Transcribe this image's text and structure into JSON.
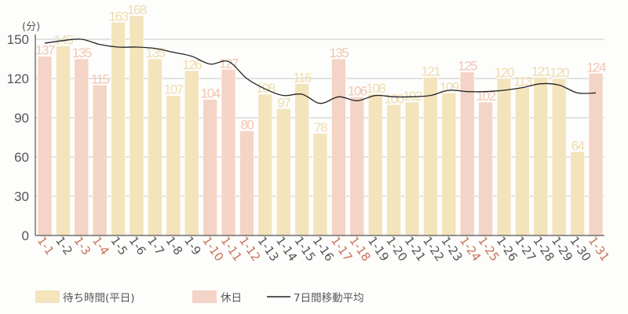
{
  "chart_data": {
    "type": "bar",
    "title": "",
    "xlabel": "",
    "ylabel": "(分)",
    "ylim": [
      0,
      170
    ],
    "yticks": [
      0,
      30,
      60,
      90,
      120,
      150
    ],
    "grid": true,
    "legend_position": "bottom",
    "categories": [
      "1-1",
      "1-2",
      "1-3",
      "1-4",
      "1-5",
      "1-6",
      "1-7",
      "1-8",
      "1-9",
      "1-10",
      "1-11",
      "1-12",
      "1-13",
      "1-14",
      "1-15",
      "1-16",
      "1-17",
      "1-18",
      "1-19",
      "1-20",
      "1-21",
      "1-22",
      "1-23",
      "1-24",
      "1-25",
      "1-26",
      "1-27",
      "1-28",
      "1-29",
      "1-30",
      "1-31"
    ],
    "values": [
      137,
      145,
      135,
      115,
      163,
      168,
      135,
      107,
      126,
      104,
      127,
      80,
      108,
      97,
      116,
      78,
      135,
      106,
      108,
      100,
      102,
      121,
      109,
      125,
      102,
      120,
      113,
      121,
      120,
      64,
      124
    ],
    "holiday": [
      true,
      false,
      true,
      true,
      false,
      false,
      false,
      false,
      false,
      true,
      true,
      true,
      false,
      false,
      false,
      false,
      true,
      true,
      false,
      false,
      false,
      false,
      false,
      true,
      true,
      false,
      false,
      false,
      false,
      false,
      true
    ],
    "series": [
      {
        "name": "待ち時間(平日)",
        "type": "bar",
        "note": "weekday bars"
      },
      {
        "name": "休日",
        "type": "bar",
        "note": "holiday bars"
      },
      {
        "name": "7日間移動平均",
        "type": "line",
        "values": [
          147,
          149,
          150,
          146,
          144,
          144,
          143,
          140,
          137,
          131,
          133,
          120,
          112,
          107,
          108,
          101,
          106,
          103,
          107,
          106,
          106,
          107,
          111,
          110,
          110,
          111,
          113,
          116,
          115,
          109,
          109
        ]
      }
    ]
  },
  "axis": {
    "unit_label": "(分)"
  },
  "legend": [
    {
      "label": "待ち時間(平日)",
      "kind": "weekday"
    },
    {
      "label": "休日",
      "kind": "holiday"
    },
    {
      "label": "7日間移動平均",
      "kind": "line"
    }
  ],
  "colors": {
    "weekday_bar": "#f3e4bc",
    "holiday_bar": "#f4d4c6",
    "weekday_label": "#efdcaf",
    "holiday_label": "#f2c6b4",
    "weekday_xlabel": "#555555",
    "holiday_xlabel": "#c8735a",
    "line": "#222222",
    "grid": "#c8c8c8",
    "axis": "#555555"
  }
}
